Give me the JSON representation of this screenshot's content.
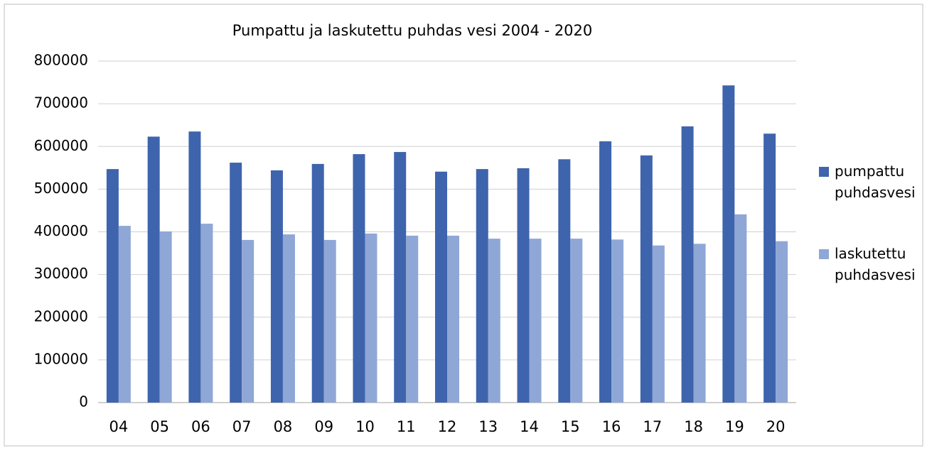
{
  "chart_data": {
    "type": "bar",
    "title": "Pumpattu ja laskutettu puhdas vesi 2004 - 2020",
    "categories": [
      "04",
      "05",
      "06",
      "07",
      "08",
      "09",
      "10",
      "11",
      "12",
      "13",
      "14",
      "15",
      "16",
      "17",
      "18",
      "19",
      "20"
    ],
    "series": [
      {
        "name": "pumpattu puhdasvesi",
        "color": "#3e64ad",
        "values": [
          547000,
          623000,
          635000,
          562000,
          544000,
          559000,
          582000,
          587000,
          541000,
          547000,
          549000,
          570000,
          612000,
          579000,
          647000,
          743000,
          630000
        ]
      },
      {
        "name": "laskutettu puhdasvesi",
        "color": "#8fa7d6",
        "values": [
          414000,
          401000,
          419000,
          381000,
          394000,
          381000,
          396000,
          391000,
          391000,
          384000,
          384000,
          384000,
          382000,
          368000,
          372000,
          441000,
          378000
        ]
      }
    ],
    "ylim": [
      0,
      800000
    ],
    "yticks": [
      0,
      100000,
      200000,
      300000,
      400000,
      500000,
      600000,
      700000,
      800000
    ],
    "grid": true,
    "legend": "right"
  }
}
